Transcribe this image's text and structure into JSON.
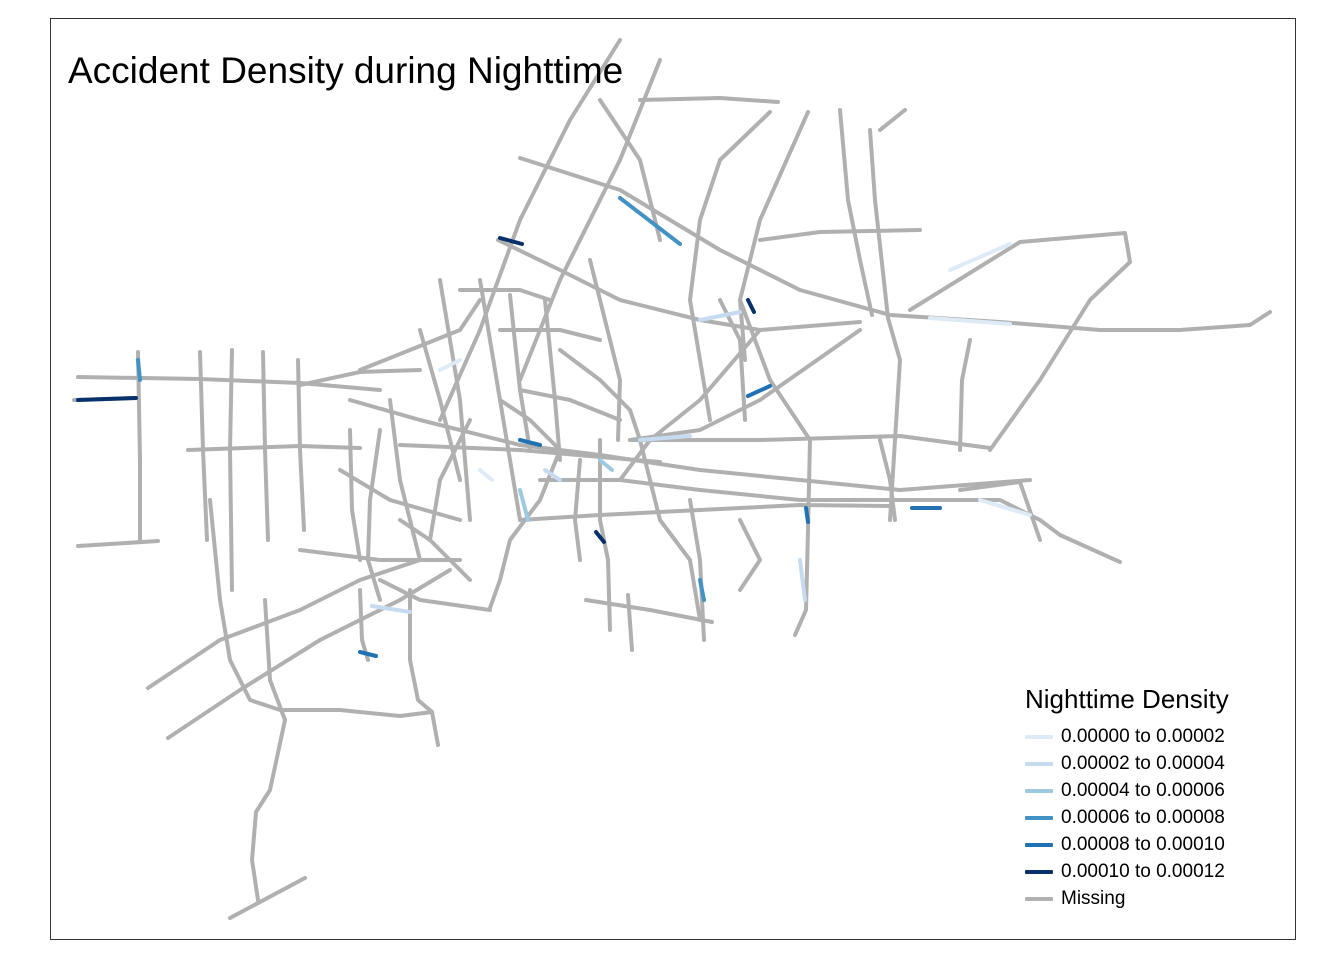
{
  "title": "Accident Density during Nighttime",
  "legend": {
    "title": "Nighttime Density",
    "items": [
      {
        "label": "0.00000 to 0.00002",
        "color": "#deebf7"
      },
      {
        "label": "0.00002 to 0.00004",
        "color": "#c6dbef"
      },
      {
        "label": "0.00004 to 0.00006",
        "color": "#9ecae1"
      },
      {
        "label": "0.00006 to 0.00008",
        "color": "#4292c6"
      },
      {
        "label": "0.00008 to 0.00010",
        "color": "#2171b5"
      },
      {
        "label": "0.00010 to 0.00012",
        "color": "#08306b"
      },
      {
        "label": "Missing",
        "color": "#b0b0b0"
      }
    ]
  },
  "colors": {
    "road_missing": "#b0b0b0",
    "frame_border": "#333333",
    "background": "#ffffff"
  }
}
